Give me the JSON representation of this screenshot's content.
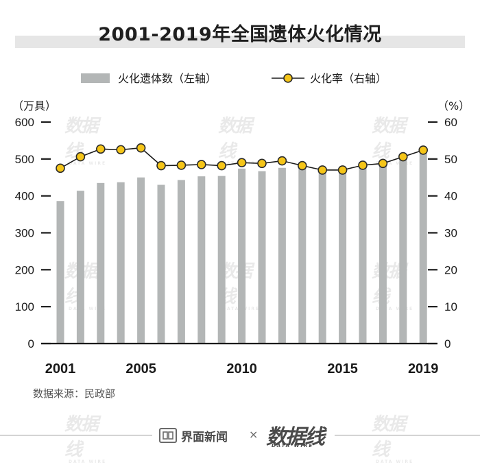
{
  "title": "2001-2019年全国遗体火化情况",
  "source": "数据来源：民政部",
  "footer": {
    "brand": "界面新闻",
    "times": "×",
    "partner": "数据线",
    "partner_sub": "DATA WIRE"
  },
  "watermark": {
    "text": "数据线",
    "sub": "DATA WIRE"
  },
  "colors": {
    "bar": "#b3b6b6",
    "line": "#1a1a1a",
    "marker_fill": "#f5c518",
    "marker_stroke": "#2b2b2b",
    "axis": "#1a1a1a",
    "text": "#1a1a1a"
  },
  "chart_data": {
    "type": "bar+line",
    "legend": [
      "火化遗体数（左轴）",
      "火化率（右轴）"
    ],
    "left_unit": "（万具）",
    "right_unit": "（%）",
    "left_ticks": [
      "0",
      "100",
      "200",
      "300",
      "400",
      "500",
      "600"
    ],
    "right_ticks": [
      "0",
      "10",
      "20",
      "30",
      "40",
      "50",
      "60"
    ],
    "ylim_left": [
      0,
      600
    ],
    "ylim_right": [
      0,
      60
    ],
    "x_tick_labels": [
      "2001",
      "2005",
      "2010",
      "2015",
      "2019"
    ],
    "categories": [
      "2001",
      "2002",
      "2003",
      "2004",
      "2005",
      "2006",
      "2007",
      "2008",
      "2009",
      "2010",
      "2011",
      "2012",
      "2013",
      "2014",
      "2015",
      "2016",
      "2017",
      "2018",
      "2019"
    ],
    "series": [
      {
        "name": "火化遗体数（左轴）",
        "axis": "left",
        "kind": "bar",
        "values": [
          386,
          414,
          435,
          437,
          450,
          430,
          443,
          453,
          454,
          474,
          467,
          476,
          476,
          467,
          467,
          477,
          484,
          499,
          527
        ]
      },
      {
        "name": "火化率（右轴）",
        "axis": "right",
        "kind": "line",
        "values": [
          47.5,
          50.6,
          52.7,
          52.5,
          53.0,
          48.2,
          48.3,
          48.5,
          48.2,
          49.0,
          48.8,
          49.5,
          48.2,
          47.0,
          47.0,
          48.3,
          48.8,
          50.6,
          52.4
        ]
      }
    ]
  }
}
